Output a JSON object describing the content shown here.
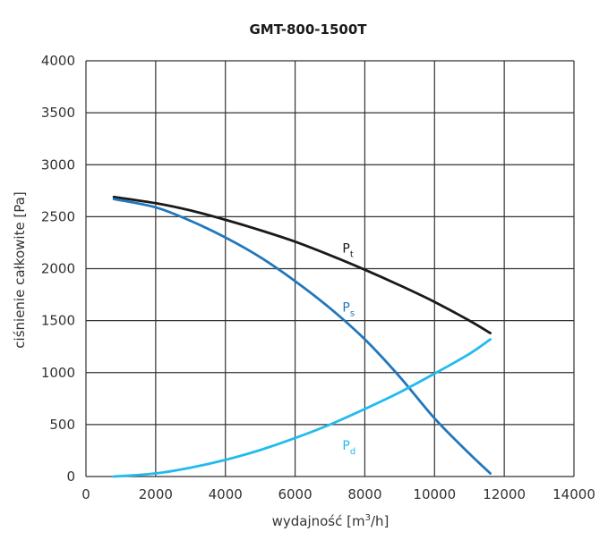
{
  "chart_data": {
    "type": "line",
    "title": "GMT-800-1500T",
    "xlabel_main": "wydajność [m",
    "xlabel_sup": "3",
    "xlabel_end": "/h]",
    "ylabel": "ciśnienie całkowite [Pa]",
    "xlim": [
      0,
      14000
    ],
    "ylim": [
      0,
      4000
    ],
    "x_ticks": [
      "0",
      "2000",
      "4000",
      "6000",
      "8000",
      "10000",
      "12000",
      "14000"
    ],
    "y_ticks": [
      "0",
      "500",
      "1000",
      "1500",
      "2000",
      "2500",
      "3000",
      "3500",
      "4000"
    ],
    "grid": true,
    "series": [
      {
        "name": "P",
        "sub": "t",
        "color": "#1a1a1a",
        "x": [
          800,
          2000,
          3000,
          4000,
          5000,
          6000,
          7000,
          8000,
          9000,
          10000,
          11000,
          11600
        ],
        "y": [
          2690,
          2630,
          2560,
          2470,
          2370,
          2260,
          2130,
          1990,
          1840,
          1680,
          1500,
          1380
        ]
      },
      {
        "name": "P",
        "sub": "s",
        "color": "#2277bb",
        "x": [
          800,
          2000,
          3000,
          4000,
          5000,
          6000,
          7000,
          8000,
          9000,
          10000,
          11000,
          11600
        ],
        "y": [
          2670,
          2590,
          2460,
          2300,
          2110,
          1880,
          1620,
          1320,
          960,
          560,
          220,
          30
        ]
      },
      {
        "name": "P",
        "sub": "d",
        "color": "#22bbee",
        "x": [
          800,
          2000,
          3000,
          4000,
          5000,
          6000,
          7000,
          8000,
          9000,
          10000,
          11000,
          11600
        ],
        "y": [
          0,
          30,
          85,
          160,
          255,
          370,
          500,
          650,
          810,
          990,
          1180,
          1320
        ]
      }
    ]
  }
}
